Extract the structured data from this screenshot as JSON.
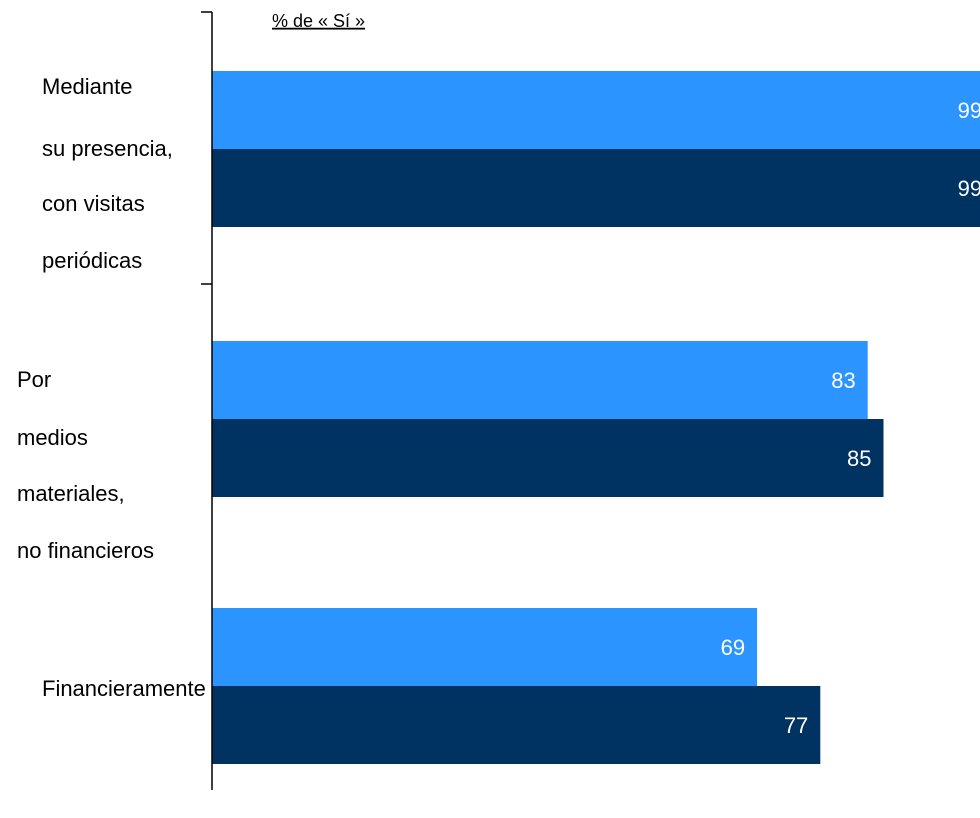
{
  "chart_data": {
    "type": "bar",
    "orientation": "horizontal",
    "title": "% de « Sí »",
    "categories": [
      [
        "Mediante",
        "su presencia,",
        "con visitas",
        "periódicas"
      ],
      [
        "Por",
        "medios",
        "materiales,",
        "no financieros"
      ],
      [
        "Financieramente"
      ]
    ],
    "series": [
      {
        "color": "#2b94ff",
        "values": [
          99,
          83,
          69
        ]
      },
      {
        "color": "#003262",
        "values": [
          99,
          85,
          77
        ]
      }
    ],
    "xlim": [
      0,
      100
    ]
  }
}
